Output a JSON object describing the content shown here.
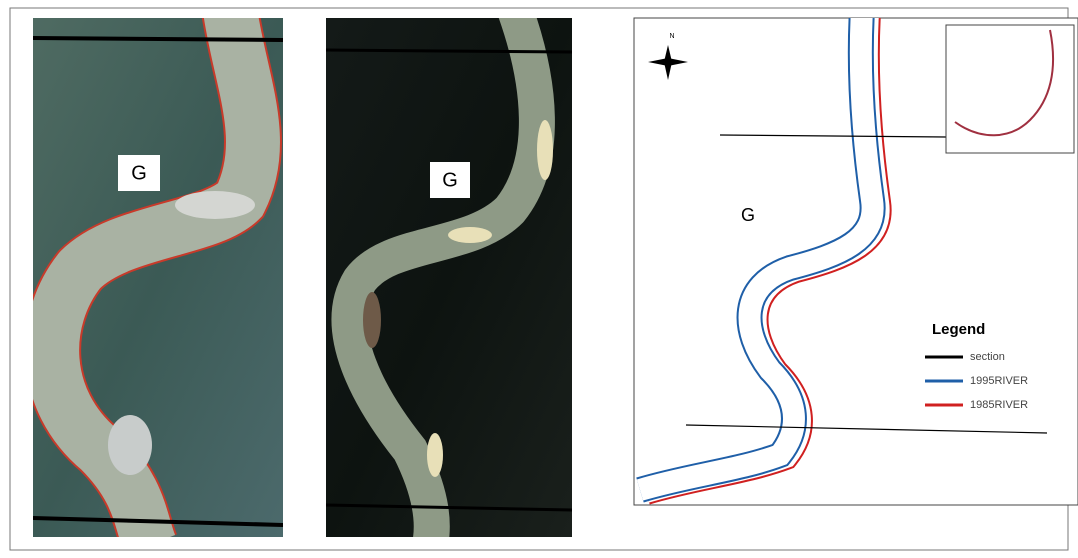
{
  "panels": [
    {
      "label": "G"
    },
    {
      "label": "G"
    }
  ],
  "map": {
    "label": "G",
    "north": "N",
    "legend": {
      "title": "Legend",
      "items": [
        {
          "name": "section",
          "color": "#000000"
        },
        {
          "name": "1995RIVER",
          "color": "#1f5fa8"
        },
        {
          "name": "1985RIVER",
          "color": "#d02020"
        }
      ]
    }
  }
}
